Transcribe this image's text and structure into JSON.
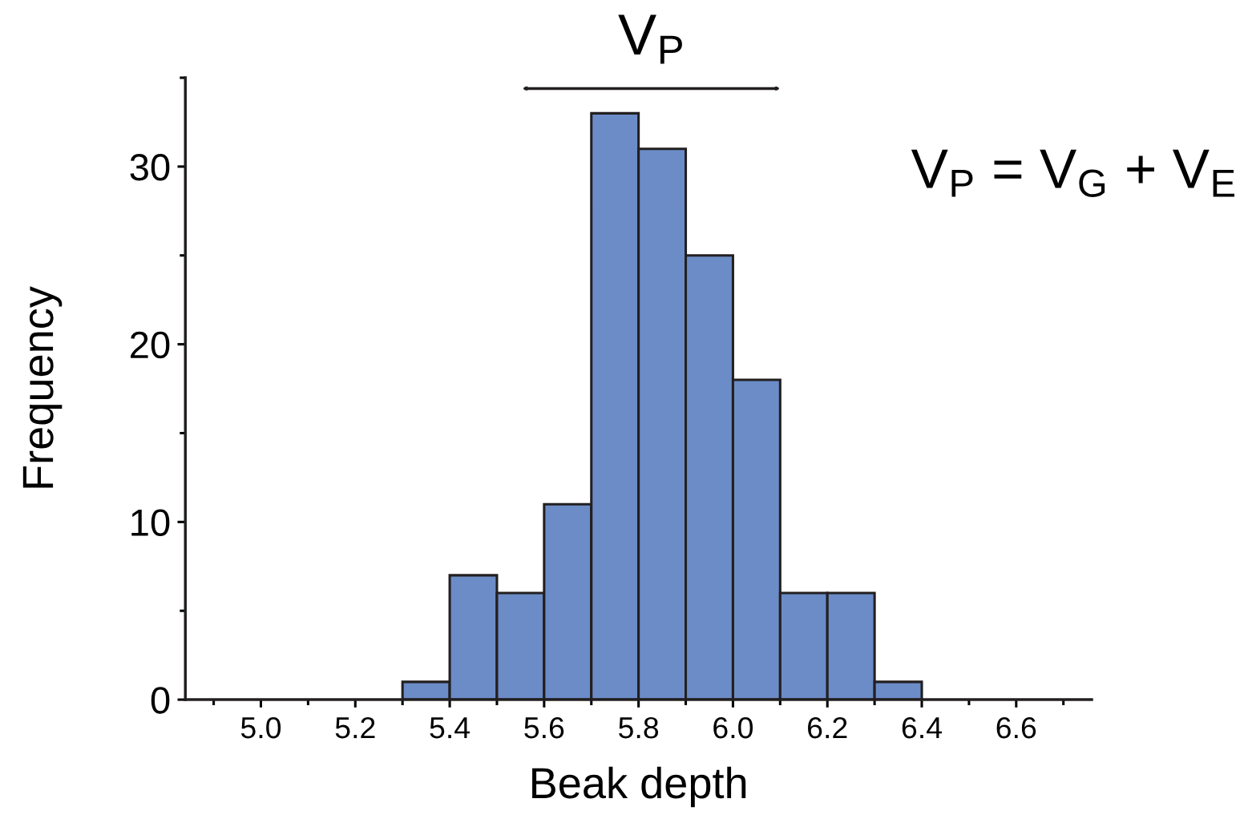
{
  "chart_data": {
    "type": "histogram",
    "xlabel": "Beak depth",
    "ylabel": "Frequency",
    "bins": [
      5.3,
      5.4,
      5.5,
      5.6,
      5.7,
      5.8,
      5.9,
      6.0,
      6.1,
      6.2,
      6.3,
      6.4
    ],
    "values": [
      1,
      7,
      6,
      11,
      33,
      31,
      25,
      18,
      6,
      6,
      1
    ],
    "color": "#6b8cc7",
    "xlim": [
      4.84,
      6.76
    ],
    "ylim": [
      0,
      35
    ],
    "xticks": [
      {
        "value": 4.9,
        "label": null
      },
      {
        "value": 5.0,
        "label": "5.0"
      },
      {
        "value": 5.1,
        "label": null
      },
      5.2,
      {
        "value": 5.3,
        "label": null
      },
      5.4,
      {
        "value": 5.5,
        "label": null
      },
      5.6,
      {
        "value": 5.7,
        "label": null
      },
      5.8,
      {
        "value": 5.9,
        "label": null
      },
      {
        "value": 6.0,
        "label": "6.0"
      },
      {
        "value": 6.1,
        "label": null
      },
      6.2,
      {
        "value": 6.3,
        "label": null
      },
      6.4,
      {
        "value": 6.5,
        "label": null
      },
      6.6,
      {
        "value": 6.7,
        "label": null
      }
    ],
    "yticks": [
      0,
      {
        "value": 5,
        "label": null
      },
      10,
      {
        "value": 15,
        "label": null
      },
      20,
      {
        "value": 25,
        "label": null
      },
      30,
      {
        "value": 35,
        "label": null
      }
    ],
    "grid": false,
    "legend": false,
    "annotations": [
      "V$_{P}$",
      "V$_{P}$ = V$_{G}$ + V$_{E}$"
    ]
  }
}
